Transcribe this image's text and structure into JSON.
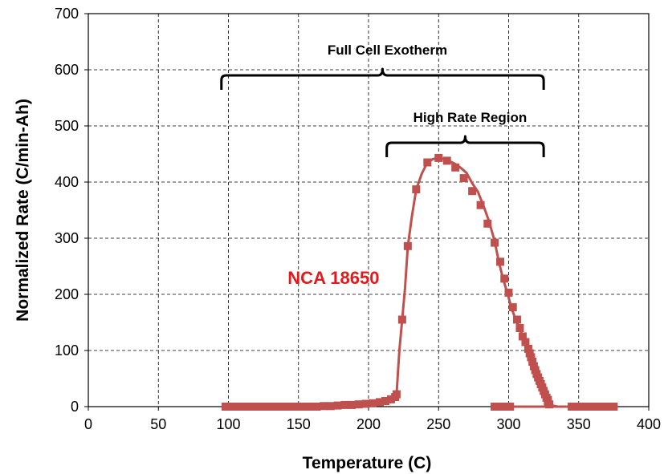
{
  "chart_data": {
    "type": "scatter",
    "title": "",
    "xlabel": "Temperature (C)",
    "ylabel": "Normalized Rate (C/min-Ah)",
    "xlim": [
      0,
      400
    ],
    "ylim": [
      0,
      700
    ],
    "xticks": [
      0,
      50,
      100,
      150,
      200,
      250,
      300,
      350,
      400
    ],
    "yticks": [
      0,
      100,
      200,
      300,
      400,
      500,
      600,
      700
    ],
    "grid": true,
    "series_color": "#c0504d",
    "series": [
      {
        "label": "NCA 18650",
        "line": [
          [
            98,
            0
          ],
          [
            120,
            0
          ],
          [
            150,
            0
          ],
          [
            170,
            1
          ],
          [
            190,
            4
          ],
          [
            205,
            7
          ],
          [
            215,
            12
          ],
          [
            220,
            22
          ],
          [
            222,
            100
          ],
          [
            224,
            155
          ],
          [
            226,
            210
          ],
          [
            228,
            285
          ],
          [
            231,
            340
          ],
          [
            234,
            386
          ],
          [
            238,
            415
          ],
          [
            242,
            435
          ],
          [
            246,
            441
          ],
          [
            250,
            443
          ],
          [
            254,
            441
          ],
          [
            258,
            437
          ],
          [
            262,
            432
          ],
          [
            266,
            425
          ],
          [
            270,
            416
          ],
          [
            274,
            398
          ],
          [
            278,
            383
          ],
          [
            282,
            358
          ],
          [
            286,
            330
          ],
          [
            290,
            295
          ],
          [
            293,
            258
          ],
          [
            296,
            228
          ],
          [
            299,
            203
          ],
          [
            302,
            176
          ],
          [
            305,
            155
          ],
          [
            308,
            138
          ],
          [
            311,
            121
          ],
          [
            314,
            103
          ],
          [
            317,
            85
          ],
          [
            320,
            65
          ],
          [
            323,
            45
          ],
          [
            326,
            25
          ],
          [
            328,
            10
          ],
          [
            329,
            3
          ],
          [
            335,
            0
          ],
          [
            375,
            0
          ]
        ],
        "markers": [
          [
            98,
            0
          ],
          [
            103,
            0
          ],
          [
            108,
            0
          ],
          [
            113,
            0
          ],
          [
            118,
            0
          ],
          [
            123,
            0
          ],
          [
            128,
            0
          ],
          [
            133,
            0
          ],
          [
            138,
            0
          ],
          [
            143,
            0
          ],
          [
            148,
            0
          ],
          [
            153,
            0
          ],
          [
            158,
            0
          ],
          [
            163,
            0
          ],
          [
            168,
            1
          ],
          [
            173,
            1
          ],
          [
            178,
            2
          ],
          [
            183,
            3
          ],
          [
            188,
            3
          ],
          [
            193,
            4
          ],
          [
            198,
            5
          ],
          [
            203,
            6
          ],
          [
            208,
            8
          ],
          [
            212,
            10
          ],
          [
            216,
            13
          ],
          [
            219,
            17
          ],
          [
            220,
            22
          ],
          [
            224,
            155
          ],
          [
            228,
            286
          ],
          [
            234,
            387
          ],
          [
            242,
            435
          ],
          [
            250,
            443
          ],
          [
            256,
            438
          ],
          [
            262,
            426
          ],
          [
            268,
            407
          ],
          [
            274,
            384
          ],
          [
            280,
            359
          ],
          [
            285,
            326
          ],
          [
            290,
            292
          ],
          [
            294,
            258
          ],
          [
            297,
            228
          ],
          [
            300,
            203
          ],
          [
            303,
            177
          ],
          [
            306,
            155
          ],
          [
            308,
            140
          ],
          [
            310,
            125
          ],
          [
            312,
            115
          ],
          [
            314,
            103
          ],
          [
            315,
            95
          ],
          [
            316,
            88
          ],
          [
            317,
            80
          ],
          [
            318,
            72
          ],
          [
            319,
            65
          ],
          [
            320,
            58
          ],
          [
            321,
            52
          ],
          [
            322,
            46
          ],
          [
            323,
            40
          ],
          [
            324,
            34
          ],
          [
            325,
            28
          ],
          [
            326,
            22
          ],
          [
            327,
            16
          ],
          [
            328,
            12
          ],
          [
            328,
            8
          ],
          [
            329,
            4
          ],
          [
            290,
            0
          ],
          [
            293,
            0
          ],
          [
            297,
            0
          ],
          [
            301,
            0
          ],
          [
            345,
            0
          ],
          [
            350,
            0
          ],
          [
            355,
            0
          ],
          [
            360,
            0
          ],
          [
            365,
            0
          ],
          [
            370,
            0
          ],
          [
            375,
            0
          ]
        ]
      }
    ],
    "annotations": [
      {
        "text": "Full Cell Exotherm",
        "x_range": [
          95,
          325
        ],
        "y": 590
      },
      {
        "text": "High Rate Region",
        "x_range": [
          213,
          325
        ],
        "y": 470
      },
      {
        "text": "NCA 18650",
        "x": 210,
        "y": 230,
        "color": "#e31a1c"
      }
    ]
  }
}
